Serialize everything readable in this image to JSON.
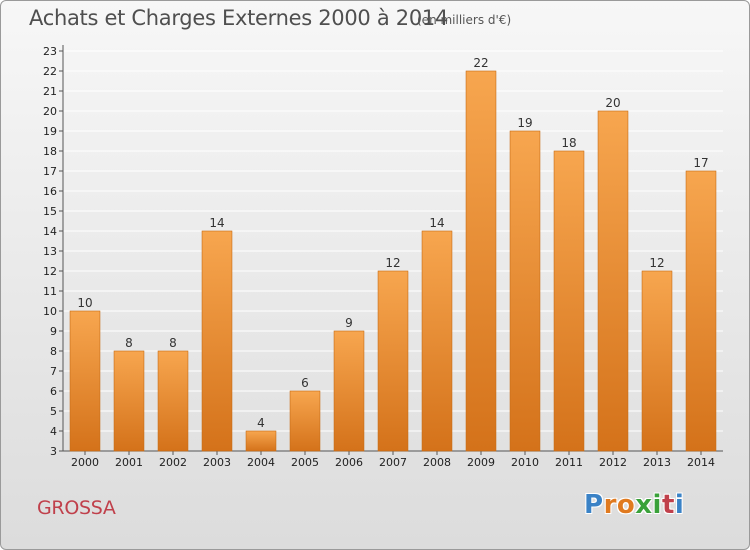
{
  "title": "Achats et Charges Externes 2000 à 2014",
  "unit_label": "(en milliers d'€)",
  "commune": "GROSSA",
  "logo": {
    "text": "Proxiti",
    "letter_colors": [
      "#3a82c6",
      "#e07a1f",
      "#e07a1f",
      "#3aa13a",
      "#3aa13a",
      "#c0404b",
      "#3a82c6"
    ]
  },
  "colors": {
    "bar_top": "#f7a64f",
    "bar_bottom": "#d4721a",
    "grid": "#ffffff",
    "axis_text": "#222222",
    "commune_text": "#c0404b"
  },
  "chart_data": {
    "type": "bar",
    "title": "Achats et Charges Externes 2000 à 2014",
    "subtitle": "(en milliers d'€)",
    "xlabel": "",
    "ylabel": "",
    "categories": [
      "2000",
      "2001",
      "2002",
      "2003",
      "2004",
      "2005",
      "2006",
      "2007",
      "2008",
      "2009",
      "2010",
      "2011",
      "2012",
      "2013",
      "2014"
    ],
    "values": [
      10,
      8,
      8,
      14,
      4,
      6,
      9,
      12,
      14,
      22,
      19,
      18,
      20,
      12,
      17
    ],
    "ylim": [
      3,
      23
    ],
    "yticks": [
      3,
      4,
      5,
      6,
      7,
      8,
      9,
      10,
      11,
      12,
      13,
      14,
      15,
      16,
      17,
      18,
      19,
      20,
      21,
      22,
      23
    ],
    "grid": true,
    "legend": "none"
  }
}
